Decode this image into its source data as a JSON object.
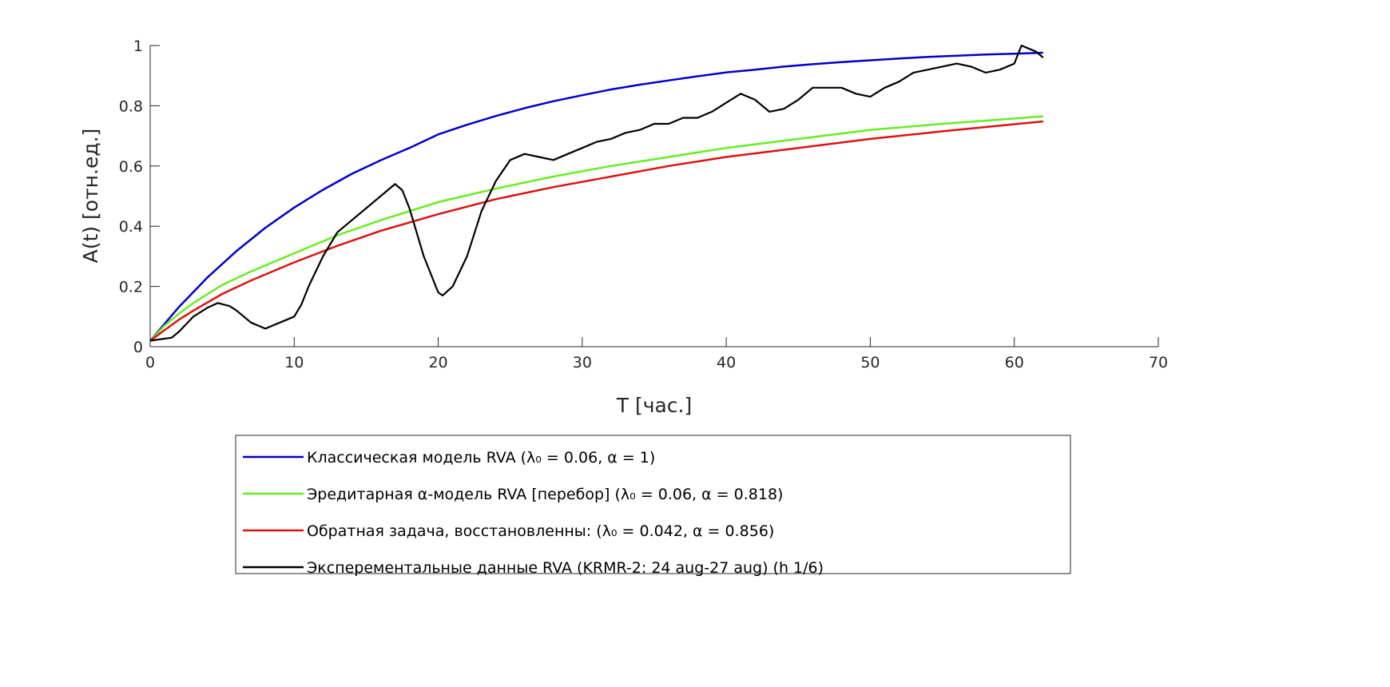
{
  "chart_data": {
    "type": "line",
    "xlabel": "T  [час.]",
    "ylabel": "A(t)  [отн.ед.]",
    "xlim": [
      0,
      70
    ],
    "ylim": [
      0,
      1
    ],
    "xticks": [
      0,
      10,
      20,
      30,
      40,
      50,
      60,
      70
    ],
    "xtick_labels": [
      "0",
      "10",
      "20",
      "30",
      "40",
      "50",
      "60",
      "70"
    ],
    "yticks": [
      0,
      0.2,
      0.4,
      0.6,
      0.8,
      1
    ],
    "ytick_labels": [
      "0",
      "0.2",
      "0.4",
      "0.6",
      "0.8",
      "1"
    ],
    "grid": false,
    "legend_placement": "below",
    "series": [
      {
        "name": "Классическая модель RVA (λ₀ = 0.06, α = 1)",
        "color": "#0000cc",
        "x": [
          0,
          2,
          4,
          6,
          8,
          10,
          12,
          14,
          16,
          18,
          20,
          22,
          24,
          26,
          28,
          30,
          32,
          34,
          36,
          38,
          40,
          42,
          44,
          46,
          48,
          50,
          52,
          54,
          56,
          58,
          60,
          62
        ],
        "y": [
          0.02,
          0.132,
          0.231,
          0.318,
          0.395,
          0.462,
          0.521,
          0.574,
          0.619,
          0.66,
          0.705,
          0.737,
          0.766,
          0.792,
          0.815,
          0.835,
          0.854,
          0.87,
          0.884,
          0.898,
          0.911,
          0.92,
          0.93,
          0.938,
          0.945,
          0.951,
          0.957,
          0.962,
          0.966,
          0.97,
          0.973,
          0.976
        ]
      },
      {
        "name": "Эредитарная α-модель RVA [перебор] (λ₀ = 0.06, α = 0.818)",
        "color": "#66ee22",
        "x": [
          0,
          1,
          2,
          3,
          5,
          7,
          10,
          13,
          16,
          20,
          24,
          28,
          32,
          36,
          40,
          45,
          50,
          55,
          62
        ],
        "y": [
          0.02,
          0.07,
          0.11,
          0.145,
          0.205,
          0.25,
          0.31,
          0.37,
          0.42,
          0.48,
          0.525,
          0.565,
          0.6,
          0.63,
          0.66,
          0.69,
          0.72,
          0.74,
          0.765
        ]
      },
      {
        "name": "Обратная задача, восстановленны: (λ₀ = 0.042, α = 0.856)",
        "color": "#dd1111",
        "x": [
          0,
          1,
          2,
          3,
          5,
          7,
          10,
          13,
          16,
          20,
          24,
          28,
          32,
          36,
          40,
          45,
          50,
          55,
          62
        ],
        "y": [
          0.02,
          0.055,
          0.09,
          0.12,
          0.175,
          0.22,
          0.28,
          0.335,
          0.385,
          0.44,
          0.49,
          0.53,
          0.565,
          0.6,
          0.63,
          0.66,
          0.69,
          0.715,
          0.748
        ]
      },
      {
        "name": "Эксперементальные данные RVA (KRMR-2: 24 aug-27 aug) (h 1/6)",
        "color": "#000000",
        "x": [
          0,
          1.5,
          2,
          3,
          4,
          4.7,
          5.5,
          6,
          7,
          8,
          9,
          10,
          10.5,
          11,
          12,
          13,
          14,
          15,
          16,
          17,
          17.5,
          18,
          19,
          20,
          20.3,
          21,
          22,
          23,
          24,
          25,
          26,
          27,
          28,
          29,
          30,
          31,
          32,
          33,
          34,
          35,
          36,
          37,
          38,
          39,
          40,
          41,
          42,
          43,
          44,
          45,
          46,
          47,
          48,
          49,
          50,
          51,
          52,
          53,
          54,
          55,
          56,
          57,
          58,
          59,
          60,
          60.5,
          61,
          61.5,
          62
        ],
        "y": [
          0.02,
          0.03,
          0.05,
          0.1,
          0.13,
          0.145,
          0.135,
          0.12,
          0.08,
          0.06,
          0.08,
          0.1,
          0.14,
          0.2,
          0.3,
          0.38,
          0.42,
          0.46,
          0.5,
          0.54,
          0.52,
          0.46,
          0.3,
          0.18,
          0.17,
          0.2,
          0.3,
          0.45,
          0.55,
          0.62,
          0.64,
          0.63,
          0.62,
          0.64,
          0.66,
          0.68,
          0.69,
          0.71,
          0.72,
          0.74,
          0.74,
          0.76,
          0.76,
          0.78,
          0.81,
          0.84,
          0.82,
          0.78,
          0.79,
          0.82,
          0.86,
          0.86,
          0.86,
          0.84,
          0.83,
          0.86,
          0.88,
          0.91,
          0.92,
          0.93,
          0.94,
          0.93,
          0.91,
          0.92,
          0.94,
          1.0,
          0.99,
          0.98,
          0.96
        ]
      }
    ]
  }
}
